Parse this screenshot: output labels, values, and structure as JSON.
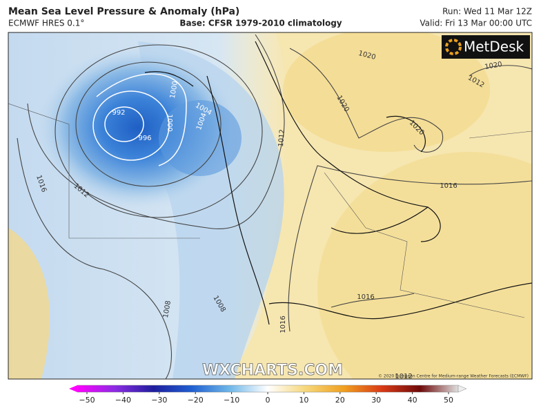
{
  "header": {
    "title": "Mean Sea Level Pressure & Anomaly (hPa)",
    "model": "ECMWF HRES 0.1°",
    "base": "Base: CFSR 1979-2010 climatology",
    "run": "Run: Wed 11 Mar 12Z",
    "valid": "Valid: Fri 13 Mar 00:00 UTC"
  },
  "map": {
    "logo": "MetDesk",
    "watermark": "WXCHARTS.COM",
    "copyright": "© 2020 European Centre for Medium-range Weather Forecasts (ECMWF)",
    "contour_labels": [
      "992",
      "996",
      "1000",
      "1000",
      "1004",
      "1004",
      "1008",
      "1008",
      "1012",
      "1012",
      "1016",
      "1016",
      "1016",
      "1016",
      "1020",
      "1020",
      "1020",
      "1020",
      "1012",
      "1012"
    ]
  },
  "colorbar": {
    "range": [
      -50,
      50
    ],
    "ticks": [
      {
        "value": -50,
        "label": "−50"
      },
      {
        "value": -40,
        "label": "−40"
      },
      {
        "value": -30,
        "label": "−30"
      },
      {
        "value": -20,
        "label": "−20"
      },
      {
        "value": -10,
        "label": "−10"
      },
      0,
      10,
      20,
      30,
      40,
      50
    ]
  }
}
